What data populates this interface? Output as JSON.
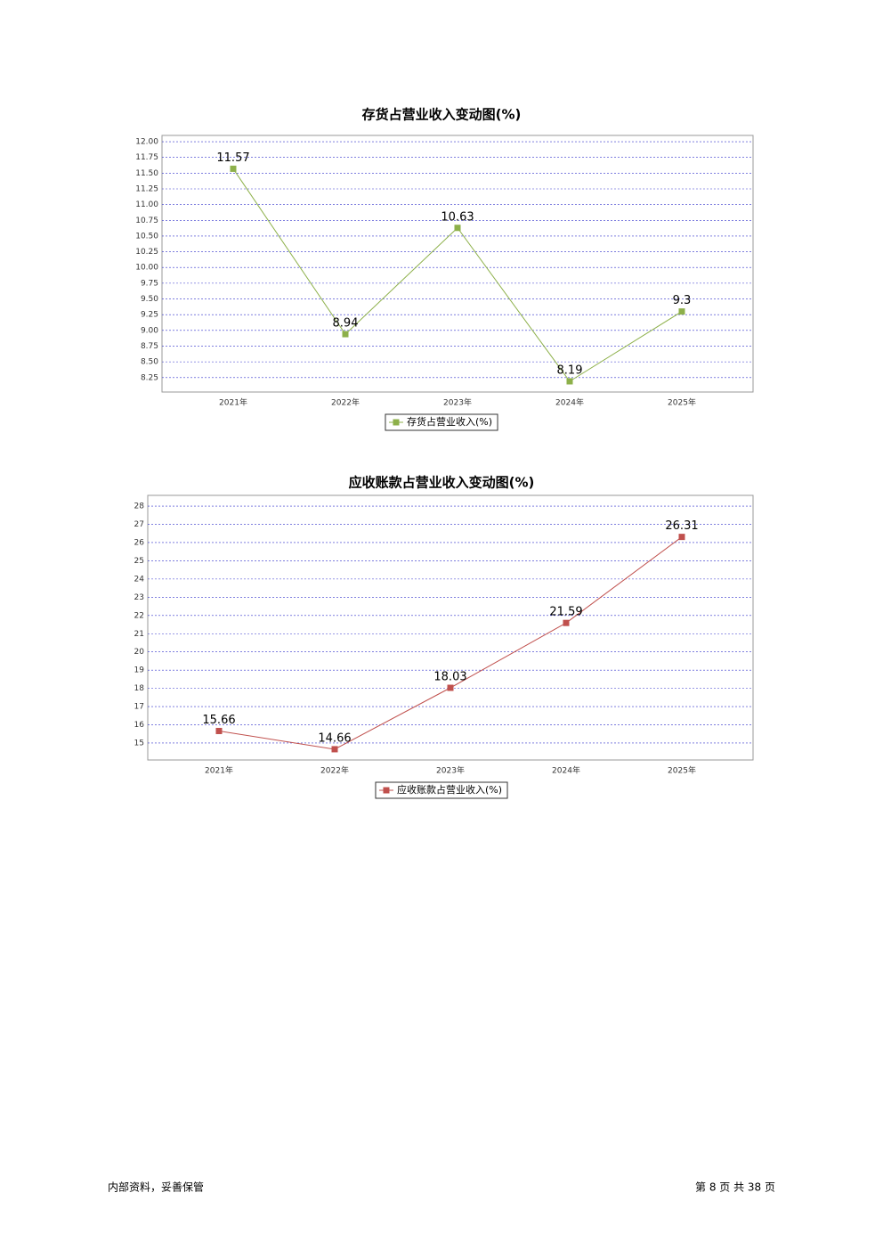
{
  "chart_data": [
    {
      "type": "line",
      "title": "存货占营业收入变动图(%)",
      "categories": [
        "2021年",
        "2022年",
        "2023年",
        "2024年",
        "2025年"
      ],
      "series": [
        {
          "name": "存货占营业收入(%)",
          "color": "#8db04a",
          "values": [
            11.57,
            8.94,
            10.63,
            8.19,
            9.3
          ]
        }
      ],
      "ylim": [
        8.02,
        12.1
      ],
      "yticks": [
        {
          "value": 8.25,
          "label": "8.25"
        },
        {
          "value": 8.5,
          "label": "8.50"
        },
        8.75,
        {
          "value": 9,
          "label": "9.00"
        },
        9.25,
        {
          "value": 9.5,
          "label": "9.50"
        },
        9.75,
        {
          "value": 10,
          "label": "10.00"
        },
        10.25,
        {
          "value": 10.5,
          "label": "10.50"
        },
        10.75,
        {
          "value": 11,
          "label": "11.00"
        },
        11.25,
        {
          "value": 11.5,
          "label": "11.50"
        },
        11.75,
        {
          "value": 12,
          "label": "12.00"
        }
      ],
      "grid": true
    },
    {
      "type": "line",
      "title": "应收账款占营业收入变动图(%)",
      "categories": [
        "2021年",
        "2022年",
        "2023年",
        "2024年",
        "2025年"
      ],
      "series": [
        {
          "name": "应收账款占营业收入(%)",
          "color": "#c0504d",
          "values": [
            15.66,
            14.66,
            18.03,
            21.59,
            26.31
          ]
        }
      ],
      "ylim": [
        14.07,
        28.59
      ],
      "yticks": [
        15,
        16,
        17,
        18,
        19,
        20,
        21,
        22,
        23,
        24,
        25,
        26,
        27,
        28
      ],
      "grid": true
    }
  ],
  "footer": {
    "left": "内部资料，妥善保管",
    "right": "第 8 页 共 38 页"
  }
}
